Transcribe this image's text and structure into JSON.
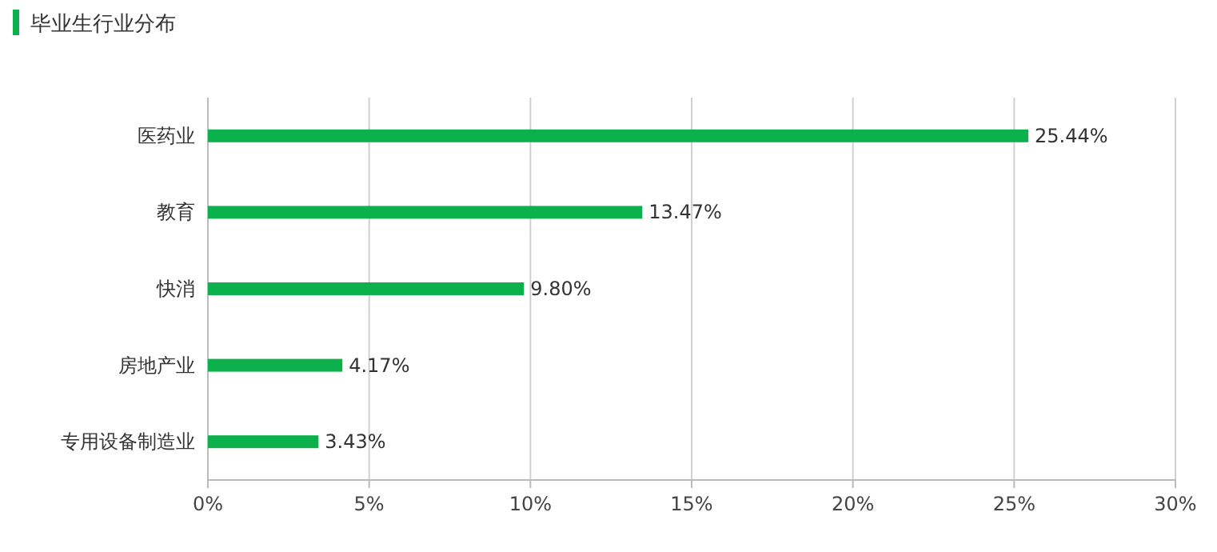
{
  "chart_data": {
    "type": "bar",
    "orientation": "horizontal",
    "title": "毕业生行业分布",
    "categories": [
      "医药业",
      "教育",
      "快消",
      "房地产业",
      "专用设备制造业"
    ],
    "values": [
      25.44,
      13.47,
      9.8,
      4.17,
      3.43
    ],
    "value_labels": [
      "25.44%",
      "13.47%",
      "9.80%",
      "4.17%",
      "3.43%"
    ],
    "color": "#0cb14b",
    "xlim": [
      0,
      30
    ],
    "xticks": [
      {
        "value": 0,
        "label": "0%"
      },
      {
        "value": 5,
        "label": "5%"
      },
      {
        "value": 10,
        "label": "10%"
      },
      {
        "value": 15,
        "label": "15%"
      },
      {
        "value": 20,
        "label": "20%"
      },
      {
        "value": 25,
        "label": "25%"
      },
      {
        "value": 30,
        "label": "30%"
      }
    ],
    "grid": "x"
  }
}
